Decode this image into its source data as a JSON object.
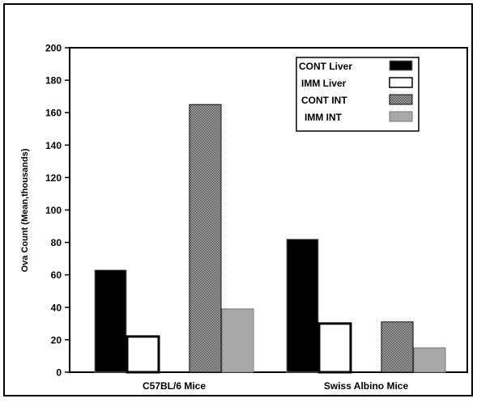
{
  "chart_data": {
    "type": "bar",
    "title": "",
    "xlabel": "",
    "ylabel": "Ova Count (Mean,thousands)",
    "ylim": [
      0,
      200
    ],
    "yticks": [
      "0",
      "20",
      "40",
      "60",
      "80",
      "100",
      "120",
      "140",
      "160",
      "180",
      "200"
    ],
    "categories": [
      "C57BL/6 Mice",
      "Swiss Albino Mice"
    ],
    "grid": false,
    "legend_position": "top-right",
    "series": [
      {
        "name": "CONT Liver",
        "values": [
          63,
          82
        ],
        "fill": "#000000",
        "pattern": "solid"
      },
      {
        "name": "IMM Liver",
        "values": [
          22,
          30
        ],
        "fill": "#ffffff",
        "pattern": "solid"
      },
      {
        "name": "CONT INT",
        "values": [
          165,
          31
        ],
        "fill": "#000000",
        "pattern": "checker"
      },
      {
        "name": "IMM INT",
        "values": [
          39,
          15
        ],
        "fill": "#a8a8a8",
        "pattern": "solid"
      }
    ]
  }
}
